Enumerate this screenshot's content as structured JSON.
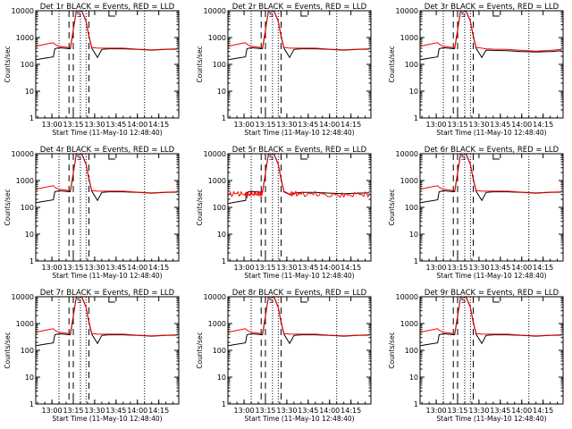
{
  "figure": {
    "type": "line",
    "shared": {
      "y_scale": "log",
      "ylim": [
        1,
        10000
      ],
      "y_ticks": [
        1,
        10,
        100,
        1000,
        10000
      ],
      "y_tick_labels": [
        "1",
        "10",
        "100",
        "1000",
        "10000"
      ],
      "ylabel": "Counts/sec",
      "xlabel": "Start Time (11-May-10 12:48:40)",
      "xlim": [
        "12:48:40",
        "14:29:00"
      ],
      "x_ticks": [
        "13:00",
        "13:15",
        "13:30",
        "13:45",
        "14:00",
        "14:15"
      ],
      "legend_text": "BLACK = Events, RED = LLD",
      "series_colors": {
        "events": "#000000",
        "lld": "#ff0000"
      },
      "markers": {
        "dotted_lines": [
          "13:05",
          "13:20",
          "13:24",
          "14:05"
        ],
        "dashed_lines": [
          "13:12",
          "13:15",
          "13:26"
        ],
        "S_label": {
          "text": "S",
          "at": "13:19"
        },
        "L_bracket": {
          "text": "L",
          "at": "13:40"
        }
      },
      "time_knots": [
        "12:49",
        "12:55",
        "13:01",
        "13:02",
        "13:05",
        "13:08",
        "13:11",
        "13:12",
        "13:13",
        "13:15",
        "13:17",
        "13:19",
        "13:21",
        "13:24",
        "13:26",
        "13:28",
        "13:32",
        "13:35",
        "13:40",
        "13:50",
        "14:00",
        "14:10",
        "14:20",
        "14:28"
      ]
    },
    "panels": [
      {
        "title": "Det 1r BLACK = Events, RED = LLD",
        "chart_data": {
          "black": [
            150,
            170,
            190,
            380,
            420,
            400,
            390,
            380,
            390,
            1800,
            9000,
            11000,
            9500,
            4000,
            1100,
            400,
            180,
            360,
            380,
            380,
            360,
            340,
            360,
            370
          ],
          "red": [
            480,
            560,
            640,
            560,
            480,
            450,
            430,
            420,
            430,
            2000,
            9500,
            12000,
            10000,
            4200,
            1200,
            430,
            400,
            400,
            400,
            400,
            370,
            350,
            370,
            380
          ]
        }
      },
      {
        "title": "Det 2r BLACK = Events, RED = LLD",
        "chart_data": {
          "black": [
            150,
            170,
            190,
            380,
            420,
            400,
            390,
            380,
            390,
            1800,
            9000,
            11000,
            9500,
            4000,
            1100,
            400,
            180,
            360,
            380,
            380,
            360,
            340,
            360,
            370
          ],
          "red": [
            480,
            560,
            640,
            560,
            480,
            450,
            430,
            420,
            430,
            2000,
            9500,
            12000,
            10000,
            4200,
            1200,
            430,
            400,
            400,
            400,
            400,
            370,
            350,
            370,
            380
          ]
        }
      },
      {
        "title": "Det 3r BLACK = Events, RED = LLD",
        "chart_data": {
          "black": [
            150,
            170,
            190,
            380,
            420,
            400,
            390,
            380,
            390,
            1800,
            9000,
            11000,
            9500,
            4000,
            1100,
            400,
            180,
            340,
            330,
            320,
            300,
            290,
            300,
            320
          ],
          "red": [
            480,
            560,
            640,
            560,
            480,
            450,
            430,
            420,
            430,
            2000,
            9500,
            12000,
            10000,
            4200,
            1200,
            430,
            400,
            380,
            370,
            360,
            330,
            310,
            330,
            360
          ]
        }
      },
      {
        "title": "Det 4r BLACK = Events, RED = LLD",
        "chart_data": {
          "black": [
            150,
            170,
            190,
            380,
            420,
            400,
            390,
            380,
            390,
            1800,
            9000,
            11000,
            9500,
            4000,
            1100,
            400,
            180,
            360,
            380,
            380,
            360,
            340,
            360,
            370
          ],
          "red": [
            480,
            560,
            640,
            560,
            480,
            450,
            430,
            420,
            430,
            2000,
            9500,
            12000,
            10000,
            4200,
            1200,
            430,
            400,
            400,
            400,
            400,
            370,
            350,
            370,
            380
          ]
        }
      },
      {
        "title": "Det 5r BLACK = Events, RED = LLD",
        "chart_data": {
          "black": [
            140,
            160,
            180,
            360,
            400,
            380,
            370,
            360,
            370,
            1800,
            9000,
            11000,
            9500,
            4000,
            1100,
            380,
            300,
            340,
            360,
            360,
            340,
            320,
            340,
            350
          ],
          "red": [
            300,
            330,
            300,
            280,
            320,
            300,
            340,
            330,
            380,
            2000,
            9500,
            12000,
            10000,
            4200,
            1200,
            400,
            310,
            330,
            300,
            320,
            300,
            280,
            300,
            310
          ]
        }
      },
      {
        "title": "Det 6r BLACK = Events, RED = LLD",
        "chart_data": {
          "black": [
            150,
            170,
            190,
            380,
            420,
            400,
            390,
            380,
            390,
            1800,
            9000,
            11000,
            9500,
            4000,
            1100,
            400,
            180,
            360,
            380,
            380,
            360,
            340,
            360,
            370
          ],
          "red": [
            480,
            560,
            640,
            560,
            480,
            450,
            430,
            420,
            430,
            2000,
            9500,
            12000,
            10000,
            4200,
            1200,
            430,
            400,
            400,
            400,
            400,
            370,
            350,
            370,
            380
          ]
        }
      },
      {
        "title": "Det 7r BLACK = Events, RED = LLD",
        "chart_data": {
          "black": [
            150,
            170,
            190,
            380,
            420,
            400,
            390,
            380,
            390,
            1800,
            9000,
            11000,
            9500,
            4000,
            1100,
            400,
            180,
            360,
            380,
            380,
            360,
            340,
            360,
            370
          ],
          "red": [
            480,
            560,
            640,
            560,
            480,
            450,
            430,
            420,
            430,
            2000,
            9500,
            12000,
            10000,
            4200,
            1200,
            430,
            400,
            400,
            400,
            400,
            370,
            350,
            370,
            380
          ]
        }
      },
      {
        "title": "Det 8r BLACK = Events, RED = LLD",
        "chart_data": {
          "black": [
            150,
            170,
            190,
            380,
            420,
            400,
            390,
            380,
            390,
            1800,
            9000,
            11000,
            9500,
            4000,
            1100,
            400,
            180,
            360,
            380,
            380,
            360,
            340,
            360,
            370
          ],
          "red": [
            480,
            560,
            640,
            560,
            480,
            450,
            430,
            420,
            430,
            2000,
            9500,
            12000,
            10000,
            4200,
            1200,
            430,
            400,
            400,
            400,
            400,
            370,
            350,
            370,
            380
          ]
        }
      },
      {
        "title": "Det 9r BLACK = Events, RED = LLD",
        "chart_data": {
          "black": [
            150,
            170,
            190,
            380,
            420,
            400,
            390,
            380,
            390,
            1800,
            9000,
            11000,
            9500,
            4000,
            1100,
            400,
            180,
            360,
            380,
            380,
            360,
            340,
            360,
            370
          ],
          "red": [
            480,
            560,
            640,
            560,
            480,
            450,
            430,
            420,
            430,
            2000,
            9500,
            12000,
            10000,
            4200,
            1200,
            430,
            400,
            400,
            400,
            400,
            370,
            350,
            370,
            380
          ]
        }
      }
    ]
  }
}
